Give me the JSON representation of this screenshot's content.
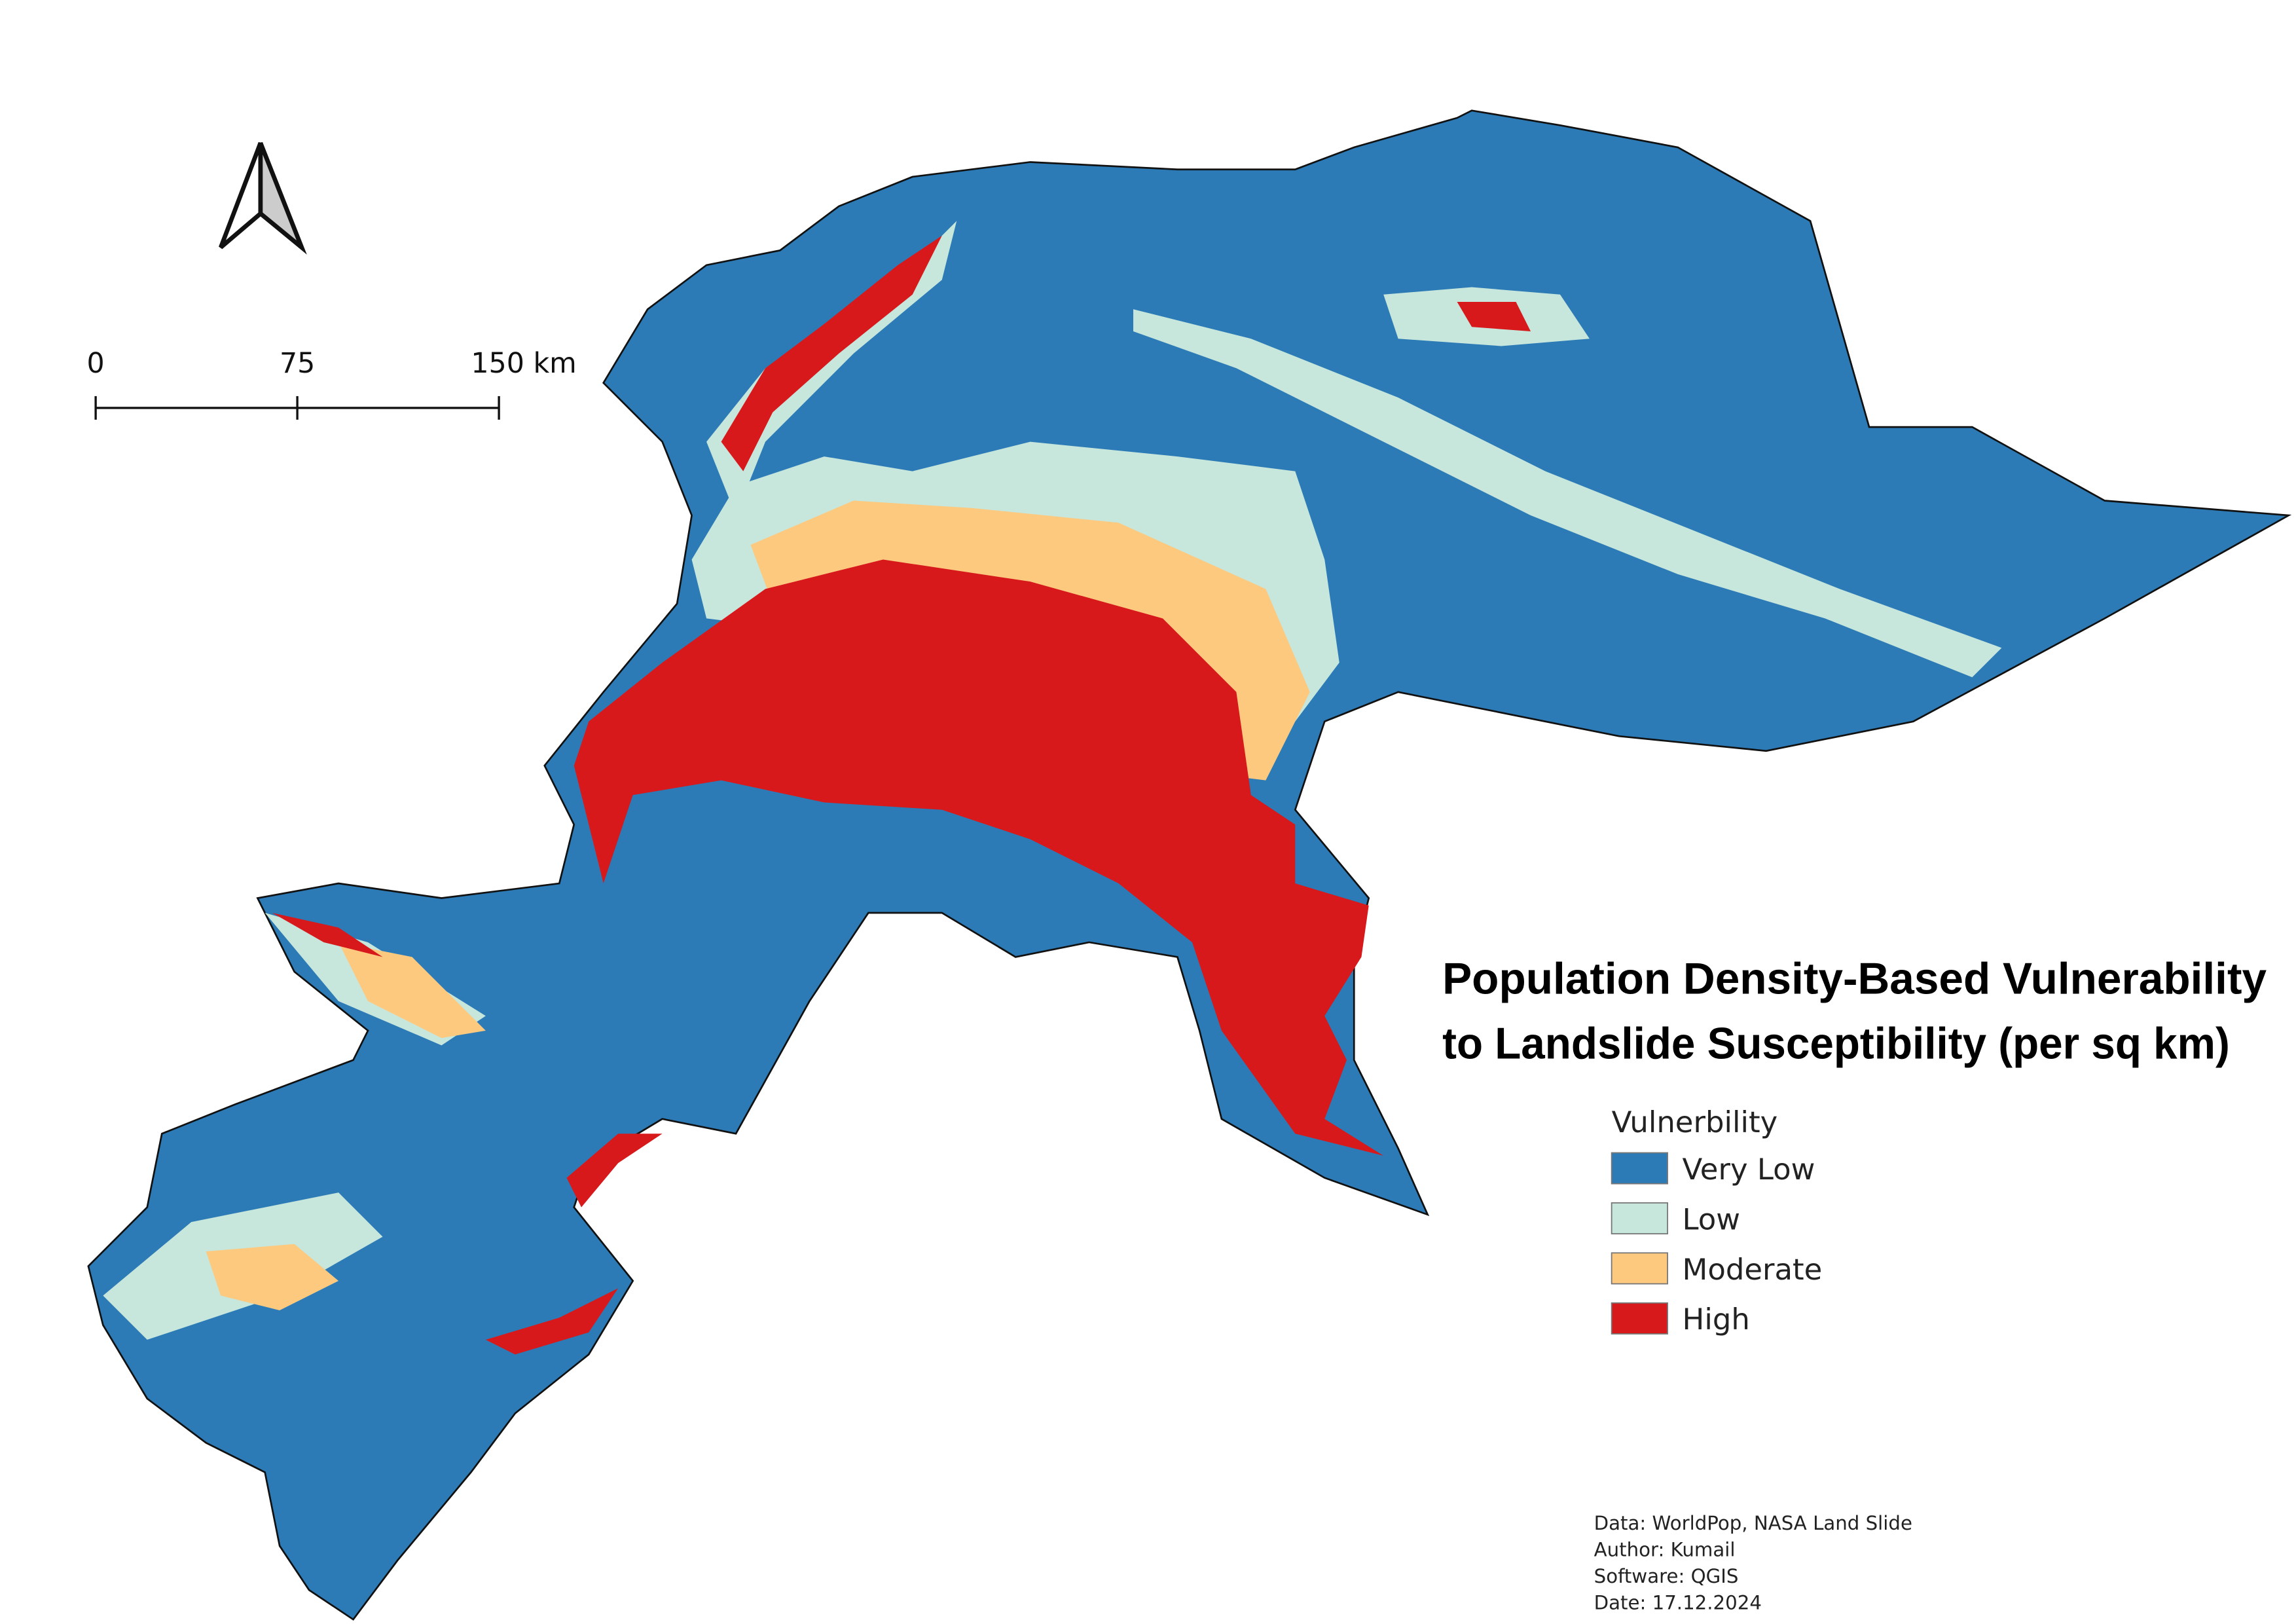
{
  "map": {
    "title": [
      "Population Density-Based Vulnerability",
      "to Landslide Susceptibility (per sq km)"
    ],
    "scale_bar": [
      "0",
      "75",
      "150 km"
    ],
    "legend": {
      "title": "Vulnerbility",
      "items": [
        {
          "name": "Very Low",
          "color": "#2c7bb6"
        },
        {
          "name": "Low",
          "color": "#c7e6dc"
        },
        {
          "name": "Moderate",
          "color": "#fdc97f"
        },
        {
          "name": "High",
          "color": "#d7191c"
        }
      ]
    },
    "credits": [
      "Data: WorldPop,  NASA Land Slide",
      "Author: Kumail",
      "Software: QGIS",
      "Date: 17.12.2024"
    ]
  }
}
